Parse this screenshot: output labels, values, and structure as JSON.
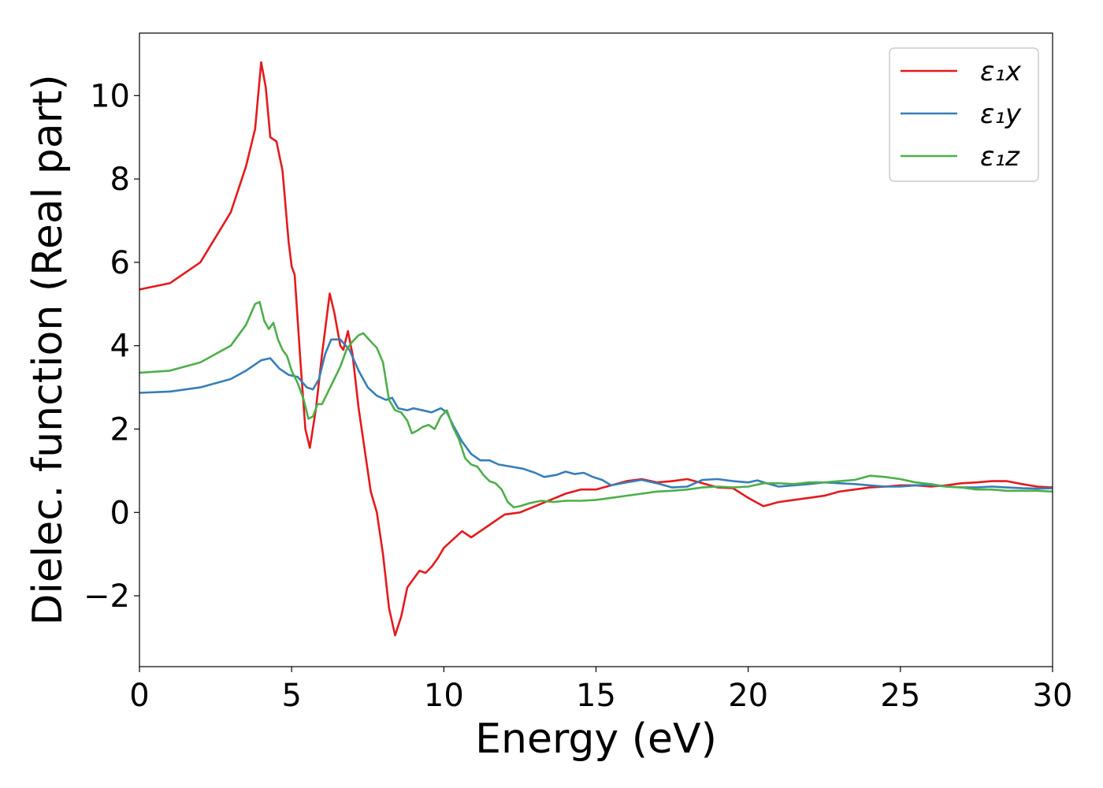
{
  "chart_data": {
    "type": "line",
    "title": "",
    "xlabel": "Energy (eV)",
    "ylabel": "Dielec. function (Real part)",
    "xlim": [
      0,
      30
    ],
    "ylim": [
      -3.7,
      11.5
    ],
    "xticks": [
      0,
      5,
      10,
      15,
      20,
      25,
      30
    ],
    "xtick_labels": [
      "0",
      "5",
      "10",
      "15",
      "20",
      "25",
      "30"
    ],
    "yticks": [
      -2,
      0,
      2,
      4,
      6,
      8,
      10
    ],
    "ytick_labels": [
      "−2",
      "0",
      "2",
      "4",
      "6",
      "8",
      "10"
    ],
    "grid": false,
    "legend_position": "top-right",
    "series": [
      {
        "name": "ε₁x",
        "color": "#e41a1c",
        "points": [
          [
            0,
            5.35
          ],
          [
            1,
            5.5
          ],
          [
            2,
            6.0
          ],
          [
            3,
            7.2
          ],
          [
            3.5,
            8.3
          ],
          [
            3.8,
            9.2
          ],
          [
            4.0,
            10.8
          ],
          [
            4.15,
            10.2
          ],
          [
            4.3,
            9.0
          ],
          [
            4.5,
            8.9
          ],
          [
            4.7,
            8.2
          ],
          [
            4.9,
            6.5
          ],
          [
            5.0,
            5.9
          ],
          [
            5.1,
            5.7
          ],
          [
            5.3,
            3.5
          ],
          [
            5.45,
            2.0
          ],
          [
            5.6,
            1.55
          ],
          [
            5.8,
            2.5
          ],
          [
            6.0,
            3.8
          ],
          [
            6.25,
            5.25
          ],
          [
            6.4,
            4.8
          ],
          [
            6.5,
            4.4
          ],
          [
            6.6,
            4.0
          ],
          [
            6.7,
            3.9
          ],
          [
            6.85,
            4.35
          ],
          [
            7.0,
            3.8
          ],
          [
            7.2,
            2.5
          ],
          [
            7.4,
            1.5
          ],
          [
            7.6,
            0.5
          ],
          [
            7.8,
            0.0
          ],
          [
            8.0,
            -1.0
          ],
          [
            8.2,
            -2.3
          ],
          [
            8.4,
            -2.95
          ],
          [
            8.6,
            -2.5
          ],
          [
            8.8,
            -1.8
          ],
          [
            9.0,
            -1.6
          ],
          [
            9.2,
            -1.4
          ],
          [
            9.4,
            -1.45
          ],
          [
            9.6,
            -1.3
          ],
          [
            9.8,
            -1.1
          ],
          [
            10.0,
            -0.85
          ],
          [
            10.3,
            -0.65
          ],
          [
            10.6,
            -0.45
          ],
          [
            10.9,
            -0.6
          ],
          [
            11.2,
            -0.45
          ],
          [
            11.6,
            -0.25
          ],
          [
            12.0,
            -0.05
          ],
          [
            12.5,
            0.0
          ],
          [
            13.0,
            0.15
          ],
          [
            13.5,
            0.3
          ],
          [
            14.0,
            0.45
          ],
          [
            14.5,
            0.55
          ],
          [
            15.0,
            0.55
          ],
          [
            15.5,
            0.65
          ],
          [
            16.0,
            0.75
          ],
          [
            16.5,
            0.8
          ],
          [
            17.0,
            0.72
          ],
          [
            17.5,
            0.75
          ],
          [
            18.0,
            0.8
          ],
          [
            18.5,
            0.7
          ],
          [
            19.0,
            0.6
          ],
          [
            19.5,
            0.58
          ],
          [
            20.0,
            0.35
          ],
          [
            20.5,
            0.15
          ],
          [
            21.0,
            0.25
          ],
          [
            21.5,
            0.3
          ],
          [
            22.0,
            0.35
          ],
          [
            22.5,
            0.4
          ],
          [
            23.0,
            0.5
          ],
          [
            23.5,
            0.55
          ],
          [
            24.0,
            0.6
          ],
          [
            24.5,
            0.62
          ],
          [
            25.0,
            0.65
          ],
          [
            25.5,
            0.65
          ],
          [
            26.0,
            0.62
          ],
          [
            26.5,
            0.65
          ],
          [
            27.0,
            0.7
          ],
          [
            27.5,
            0.72
          ],
          [
            28.0,
            0.75
          ],
          [
            28.5,
            0.75
          ],
          [
            29.0,
            0.68
          ],
          [
            29.5,
            0.62
          ],
          [
            30.0,
            0.6
          ]
        ]
      },
      {
        "name": "ε₁y",
        "color": "#377eb8",
        "points": [
          [
            0,
            2.87
          ],
          [
            1,
            2.9
          ],
          [
            2,
            3.0
          ],
          [
            3,
            3.2
          ],
          [
            3.5,
            3.4
          ],
          [
            4.0,
            3.65
          ],
          [
            4.3,
            3.7
          ],
          [
            4.6,
            3.45
          ],
          [
            4.9,
            3.3
          ],
          [
            5.2,
            3.25
          ],
          [
            5.5,
            3.0
          ],
          [
            5.7,
            2.95
          ],
          [
            5.9,
            3.2
          ],
          [
            6.1,
            3.8
          ],
          [
            6.3,
            4.15
          ],
          [
            6.6,
            4.15
          ],
          [
            6.9,
            3.9
          ],
          [
            7.2,
            3.4
          ],
          [
            7.5,
            3.0
          ],
          [
            7.8,
            2.8
          ],
          [
            8.1,
            2.7
          ],
          [
            8.3,
            2.75
          ],
          [
            8.5,
            2.5
          ],
          [
            8.8,
            2.45
          ],
          [
            9.0,
            2.5
          ],
          [
            9.3,
            2.45
          ],
          [
            9.6,
            2.4
          ],
          [
            9.9,
            2.5
          ],
          [
            10.1,
            2.4
          ],
          [
            10.3,
            2.1
          ],
          [
            10.6,
            1.7
          ],
          [
            10.9,
            1.4
          ],
          [
            11.2,
            1.25
          ],
          [
            11.5,
            1.25
          ],
          [
            11.8,
            1.15
          ],
          [
            12.2,
            1.1
          ],
          [
            12.6,
            1.05
          ],
          [
            13.0,
            0.95
          ],
          [
            13.3,
            0.85
          ],
          [
            13.7,
            0.9
          ],
          [
            14.0,
            0.98
          ],
          [
            14.3,
            0.92
          ],
          [
            14.6,
            0.95
          ],
          [
            14.9,
            0.85
          ],
          [
            15.2,
            0.78
          ],
          [
            15.5,
            0.65
          ],
          [
            16.0,
            0.72
          ],
          [
            16.5,
            0.78
          ],
          [
            17.0,
            0.7
          ],
          [
            17.5,
            0.6
          ],
          [
            18.0,
            0.62
          ],
          [
            18.5,
            0.78
          ],
          [
            19.0,
            0.8
          ],
          [
            19.5,
            0.75
          ],
          [
            20.0,
            0.72
          ],
          [
            20.3,
            0.77
          ],
          [
            20.6,
            0.7
          ],
          [
            21.0,
            0.62
          ],
          [
            21.5,
            0.65
          ],
          [
            22.0,
            0.68
          ],
          [
            22.5,
            0.72
          ],
          [
            23.0,
            0.7
          ],
          [
            23.5,
            0.68
          ],
          [
            24.0,
            0.65
          ],
          [
            24.5,
            0.62
          ],
          [
            25.0,
            0.62
          ],
          [
            25.5,
            0.65
          ],
          [
            26.0,
            0.66
          ],
          [
            26.5,
            0.62
          ],
          [
            27.0,
            0.6
          ],
          [
            27.5,
            0.6
          ],
          [
            28.0,
            0.62
          ],
          [
            28.5,
            0.6
          ],
          [
            29.0,
            0.58
          ],
          [
            29.5,
            0.57
          ],
          [
            30.0,
            0.58
          ]
        ]
      },
      {
        "name": "ε₁z",
        "color": "#4daf4a",
        "points": [
          [
            0,
            3.35
          ],
          [
            1,
            3.4
          ],
          [
            2,
            3.6
          ],
          [
            3,
            4.0
          ],
          [
            3.5,
            4.5
          ],
          [
            3.8,
            5.0
          ],
          [
            3.95,
            5.05
          ],
          [
            4.1,
            4.6
          ],
          [
            4.25,
            4.4
          ],
          [
            4.4,
            4.55
          ],
          [
            4.55,
            4.15
          ],
          [
            4.7,
            3.9
          ],
          [
            4.85,
            3.75
          ],
          [
            5.0,
            3.4
          ],
          [
            5.2,
            3.1
          ],
          [
            5.4,
            2.7
          ],
          [
            5.55,
            2.25
          ],
          [
            5.7,
            2.3
          ],
          [
            5.85,
            2.6
          ],
          [
            6.0,
            2.6
          ],
          [
            6.2,
            2.9
          ],
          [
            6.4,
            3.2
          ],
          [
            6.6,
            3.5
          ],
          [
            6.8,
            3.9
          ],
          [
            7.0,
            4.1
          ],
          [
            7.2,
            4.25
          ],
          [
            7.35,
            4.3
          ],
          [
            7.6,
            4.1
          ],
          [
            7.8,
            3.95
          ],
          [
            8.0,
            3.6
          ],
          [
            8.2,
            2.7
          ],
          [
            8.4,
            2.45
          ],
          [
            8.6,
            2.4
          ],
          [
            8.8,
            2.2
          ],
          [
            8.95,
            1.9
          ],
          [
            9.1,
            1.95
          ],
          [
            9.3,
            2.05
          ],
          [
            9.5,
            2.1
          ],
          [
            9.7,
            2.0
          ],
          [
            9.9,
            2.3
          ],
          [
            10.1,
            2.45
          ],
          [
            10.3,
            2.05
          ],
          [
            10.5,
            1.75
          ],
          [
            10.7,
            1.3
          ],
          [
            10.9,
            1.15
          ],
          [
            11.1,
            1.1
          ],
          [
            11.3,
            0.9
          ],
          [
            11.5,
            0.75
          ],
          [
            11.7,
            0.7
          ],
          [
            11.9,
            0.55
          ],
          [
            12.1,
            0.25
          ],
          [
            12.3,
            0.12
          ],
          [
            12.5,
            0.15
          ],
          [
            12.8,
            0.22
          ],
          [
            13.2,
            0.28
          ],
          [
            13.6,
            0.25
          ],
          [
            14.0,
            0.28
          ],
          [
            14.5,
            0.28
          ],
          [
            15.0,
            0.3
          ],
          [
            15.5,
            0.35
          ],
          [
            16.0,
            0.4
          ],
          [
            16.5,
            0.45
          ],
          [
            17.0,
            0.5
          ],
          [
            17.5,
            0.52
          ],
          [
            18.0,
            0.55
          ],
          [
            18.5,
            0.6
          ],
          [
            19.0,
            0.62
          ],
          [
            19.5,
            0.6
          ],
          [
            20.0,
            0.62
          ],
          [
            20.5,
            0.7
          ],
          [
            21.0,
            0.7
          ],
          [
            21.5,
            0.68
          ],
          [
            22.0,
            0.72
          ],
          [
            22.5,
            0.72
          ],
          [
            23.0,
            0.75
          ],
          [
            23.5,
            0.78
          ],
          [
            24.0,
            0.88
          ],
          [
            24.5,
            0.85
          ],
          [
            25.0,
            0.8
          ],
          [
            25.5,
            0.72
          ],
          [
            26.0,
            0.68
          ],
          [
            26.5,
            0.62
          ],
          [
            27.0,
            0.6
          ],
          [
            27.5,
            0.55
          ],
          [
            28.0,
            0.55
          ],
          [
            28.5,
            0.52
          ],
          [
            29.0,
            0.52
          ],
          [
            29.5,
            0.52
          ],
          [
            30.0,
            0.5
          ]
        ]
      }
    ]
  }
}
